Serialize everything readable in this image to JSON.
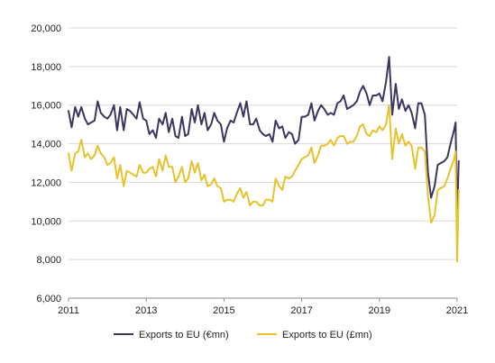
{
  "chart_data": {
    "type": "line",
    "title": "",
    "xlabel": "",
    "ylabel": "",
    "xlim": [
      2011,
      2021
    ],
    "ylim": [
      6000,
      20000
    ],
    "x_ticks": [
      "2011",
      "2013",
      "2015",
      "2017",
      "2019",
      "2021"
    ],
    "y_ticks": [
      "6,000",
      "8,000",
      "10,000",
      "12,000",
      "14,000",
      "16,000",
      "18,000",
      "20,000"
    ],
    "grid": "horizontal",
    "legend_position": "bottom",
    "series": [
      {
        "name": "Exports to EU (€mn)",
        "color": "#3b3560",
        "values": [
          [
            2011.0,
            15700
          ],
          [
            2011.08,
            14850
          ],
          [
            2011.17,
            15900
          ],
          [
            2011.25,
            15400
          ],
          [
            2011.33,
            15900
          ],
          [
            2011.42,
            15300
          ],
          [
            2011.5,
            15000
          ],
          [
            2011.58,
            15100
          ],
          [
            2011.67,
            15200
          ],
          [
            2011.75,
            16200
          ],
          [
            2011.83,
            15600
          ],
          [
            2011.92,
            15400
          ],
          [
            2012.0,
            15300
          ],
          [
            2012.08,
            15500
          ],
          [
            2012.17,
            16000
          ],
          [
            2012.25,
            14700
          ],
          [
            2012.33,
            15900
          ],
          [
            2012.42,
            14700
          ],
          [
            2012.5,
            15800
          ],
          [
            2012.58,
            15700
          ],
          [
            2012.67,
            15500
          ],
          [
            2012.75,
            15300
          ],
          [
            2012.83,
            16150
          ],
          [
            2012.92,
            15300
          ],
          [
            2013.0,
            15200
          ],
          [
            2013.08,
            14500
          ],
          [
            2013.17,
            14700
          ],
          [
            2013.25,
            14300
          ],
          [
            2013.33,
            15300
          ],
          [
            2013.42,
            15000
          ],
          [
            2013.5,
            15600
          ],
          [
            2013.58,
            14600
          ],
          [
            2013.67,
            15300
          ],
          [
            2013.75,
            14400
          ],
          [
            2013.83,
            14300
          ],
          [
            2013.92,
            15400
          ],
          [
            2014.0,
            14400
          ],
          [
            2014.08,
            14500
          ],
          [
            2014.17,
            15800
          ],
          [
            2014.25,
            15100
          ],
          [
            2014.33,
            16000
          ],
          [
            2014.42,
            15000
          ],
          [
            2014.5,
            15600
          ],
          [
            2014.58,
            14700
          ],
          [
            2014.67,
            15000
          ],
          [
            2014.75,
            15600
          ],
          [
            2014.83,
            15200
          ],
          [
            2014.92,
            15000
          ],
          [
            2015.0,
            14100
          ],
          [
            2015.08,
            14800
          ],
          [
            2015.17,
            15200
          ],
          [
            2015.25,
            15100
          ],
          [
            2015.33,
            15600
          ],
          [
            2015.42,
            16100
          ],
          [
            2015.5,
            15400
          ],
          [
            2015.58,
            16200
          ],
          [
            2015.67,
            15000
          ],
          [
            2015.75,
            15000
          ],
          [
            2015.83,
            15300
          ],
          [
            2015.92,
            14700
          ],
          [
            2016.0,
            14500
          ],
          [
            2016.08,
            14400
          ],
          [
            2016.17,
            14500
          ],
          [
            2016.25,
            14100
          ],
          [
            2016.33,
            15200
          ],
          [
            2016.42,
            14800
          ],
          [
            2016.5,
            14900
          ],
          [
            2016.58,
            14300
          ],
          [
            2016.67,
            14600
          ],
          [
            2016.75,
            14500
          ],
          [
            2016.83,
            14000
          ],
          [
            2016.92,
            14200
          ],
          [
            2017.0,
            15400
          ],
          [
            2017.08,
            15400
          ],
          [
            2017.17,
            15500
          ],
          [
            2017.25,
            16100
          ],
          [
            2017.33,
            15200
          ],
          [
            2017.42,
            15700
          ],
          [
            2017.5,
            16000
          ],
          [
            2017.58,
            15800
          ],
          [
            2017.67,
            15500
          ],
          [
            2017.75,
            15600
          ],
          [
            2017.83,
            15500
          ],
          [
            2017.92,
            16100
          ],
          [
            2018.0,
            16200
          ],
          [
            2018.08,
            16500
          ],
          [
            2018.17,
            15800
          ],
          [
            2018.25,
            15900
          ],
          [
            2018.33,
            16000
          ],
          [
            2018.42,
            16200
          ],
          [
            2018.5,
            16700
          ],
          [
            2018.58,
            17000
          ],
          [
            2018.67,
            16600
          ],
          [
            2018.75,
            16000
          ],
          [
            2018.83,
            16500
          ],
          [
            2018.92,
            16500
          ],
          [
            2019.0,
            16600
          ],
          [
            2019.08,
            16200
          ],
          [
            2019.17,
            17200
          ],
          [
            2019.25,
            18500
          ],
          [
            2019.33,
            15500
          ],
          [
            2019.42,
            17100
          ],
          [
            2019.5,
            15800
          ],
          [
            2019.58,
            16300
          ],
          [
            2019.67,
            15700
          ],
          [
            2019.75,
            16000
          ],
          [
            2019.83,
            15600
          ],
          [
            2019.92,
            14800
          ],
          [
            2020.0,
            16100
          ],
          [
            2020.08,
            16100
          ],
          [
            2020.17,
            15500
          ],
          [
            2020.25,
            12500
          ],
          [
            2020.33,
            11200
          ],
          [
            2020.42,
            11800
          ],
          [
            2020.5,
            12900
          ],
          [
            2020.58,
            13000
          ],
          [
            2020.67,
            13100
          ],
          [
            2020.75,
            13300
          ],
          [
            2020.83,
            14000
          ],
          [
            2020.92,
            14700
          ],
          [
            2020.96,
            15100
          ],
          [
            2021.0,
            9900
          ],
          [
            2021.04,
            13100
          ]
        ]
      },
      {
        "name": "Exports to EU (£mn)",
        "color": "#e8c22c",
        "values": [
          [
            2011.0,
            13500
          ],
          [
            2011.08,
            12600
          ],
          [
            2011.17,
            13500
          ],
          [
            2011.25,
            13600
          ],
          [
            2011.33,
            14200
          ],
          [
            2011.42,
            13300
          ],
          [
            2011.5,
            13500
          ],
          [
            2011.58,
            13200
          ],
          [
            2011.67,
            13400
          ],
          [
            2011.75,
            13900
          ],
          [
            2011.83,
            13500
          ],
          [
            2011.92,
            13300
          ],
          [
            2012.0,
            12900
          ],
          [
            2012.08,
            13000
          ],
          [
            2012.17,
            13300
          ],
          [
            2012.25,
            12200
          ],
          [
            2012.33,
            12900
          ],
          [
            2012.42,
            11800
          ],
          [
            2012.5,
            12600
          ],
          [
            2012.58,
            12500
          ],
          [
            2012.67,
            12400
          ],
          [
            2012.75,
            12300
          ],
          [
            2012.83,
            12900
          ],
          [
            2012.92,
            12500
          ],
          [
            2013.0,
            12500
          ],
          [
            2013.08,
            12700
          ],
          [
            2013.17,
            12800
          ],
          [
            2013.25,
            12300
          ],
          [
            2013.33,
            13200
          ],
          [
            2013.42,
            12600
          ],
          [
            2013.5,
            13400
          ],
          [
            2013.58,
            12800
          ],
          [
            2013.67,
            12800
          ],
          [
            2013.75,
            12000
          ],
          [
            2013.83,
            12300
          ],
          [
            2013.92,
            12800
          ],
          [
            2014.0,
            12000
          ],
          [
            2014.08,
            12200
          ],
          [
            2014.17,
            13100
          ],
          [
            2014.25,
            12500
          ],
          [
            2014.33,
            13000
          ],
          [
            2014.42,
            12100
          ],
          [
            2014.5,
            12400
          ],
          [
            2014.58,
            11800
          ],
          [
            2014.67,
            11900
          ],
          [
            2014.75,
            12200
          ],
          [
            2014.83,
            11800
          ],
          [
            2014.92,
            11700
          ],
          [
            2015.0,
            11000
          ],
          [
            2015.08,
            11100
          ],
          [
            2015.17,
            11100
          ],
          [
            2015.25,
            11000
          ],
          [
            2015.33,
            11400
          ],
          [
            2015.42,
            11700
          ],
          [
            2015.5,
            11200
          ],
          [
            2015.58,
            11500
          ],
          [
            2015.67,
            10800
          ],
          [
            2015.75,
            11000
          ],
          [
            2015.83,
            11000
          ],
          [
            2015.92,
            10800
          ],
          [
            2016.0,
            10800
          ],
          [
            2016.08,
            11100
          ],
          [
            2016.17,
            11100
          ],
          [
            2016.25,
            11000
          ],
          [
            2016.33,
            12200
          ],
          [
            2016.42,
            11800
          ],
          [
            2016.5,
            11600
          ],
          [
            2016.58,
            12300
          ],
          [
            2016.67,
            12200
          ],
          [
            2016.75,
            12300
          ],
          [
            2016.83,
            12600
          ],
          [
            2016.92,
            12900
          ],
          [
            2017.0,
            13200
          ],
          [
            2017.08,
            13300
          ],
          [
            2017.17,
            13400
          ],
          [
            2017.25,
            13800
          ],
          [
            2017.33,
            13000
          ],
          [
            2017.42,
            13400
          ],
          [
            2017.5,
            13900
          ],
          [
            2017.58,
            13900
          ],
          [
            2017.67,
            14000
          ],
          [
            2017.75,
            14200
          ],
          [
            2017.83,
            13900
          ],
          [
            2017.92,
            14300
          ],
          [
            2018.0,
            14400
          ],
          [
            2018.08,
            14400
          ],
          [
            2018.17,
            14000
          ],
          [
            2018.25,
            14100
          ],
          [
            2018.33,
            14100
          ],
          [
            2018.42,
            14400
          ],
          [
            2018.5,
            14900
          ],
          [
            2018.58,
            15000
          ],
          [
            2018.67,
            14500
          ],
          [
            2018.75,
            14400
          ],
          [
            2018.83,
            14700
          ],
          [
            2018.92,
            14600
          ],
          [
            2019.0,
            14900
          ],
          [
            2019.08,
            14700
          ],
          [
            2019.17,
            15000
          ],
          [
            2019.25,
            16000
          ],
          [
            2019.33,
            13200
          ],
          [
            2019.42,
            14800
          ],
          [
            2019.5,
            14000
          ],
          [
            2019.58,
            14500
          ],
          [
            2019.67,
            13900
          ],
          [
            2019.75,
            14100
          ],
          [
            2019.83,
            13900
          ],
          [
            2019.92,
            12700
          ],
          [
            2020.0,
            13800
          ],
          [
            2020.08,
            13800
          ],
          [
            2020.17,
            13600
          ],
          [
            2020.25,
            11300
          ],
          [
            2020.33,
            9900
          ],
          [
            2020.42,
            10300
          ],
          [
            2020.5,
            11600
          ],
          [
            2020.58,
            11700
          ],
          [
            2020.67,
            11800
          ],
          [
            2020.75,
            12200
          ],
          [
            2020.83,
            12700
          ],
          [
            2020.92,
            13200
          ],
          [
            2020.96,
            13600
          ],
          [
            2021.0,
            7900
          ],
          [
            2021.04,
            11600
          ]
        ]
      }
    ]
  }
}
